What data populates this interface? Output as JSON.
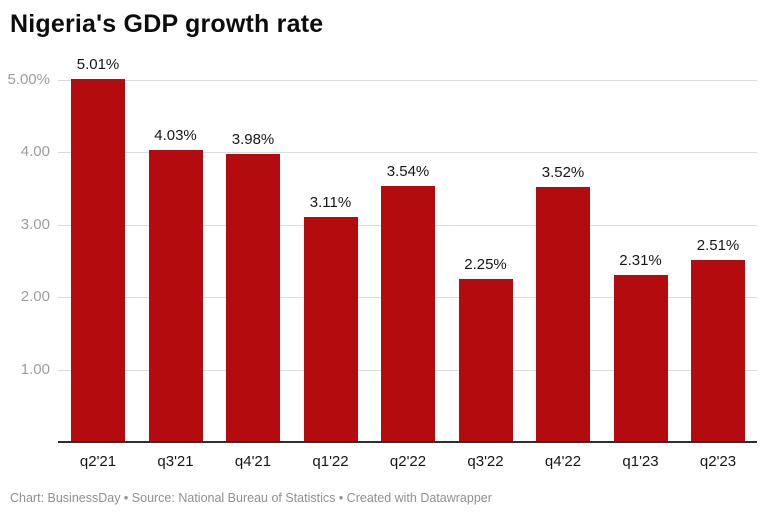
{
  "title": "Nigeria's GDP growth rate",
  "footer": "Chart: BusinessDay  • Source: National Bureau of Statistics • Created with Datawrapper",
  "colors": {
    "bar": "#b40c0e",
    "gridline": "#dbdbdb",
    "baseline": "#2e2e2e",
    "axis_text": "#9d9d9d",
    "label_text": "#161616",
    "title_text": "#0d0d0d",
    "footer_text": "#8f8f8f",
    "background": "#ffffff"
  },
  "chart_data": {
    "type": "bar",
    "title": "Nigeria's GDP growth rate",
    "xlabel": "",
    "ylabel": "",
    "categories": [
      "q2'21",
      "q3'21",
      "q4'21",
      "q1'22",
      "q2'22",
      "q3'22",
      "q4'22",
      "q1'23",
      "q2'23"
    ],
    "values": [
      5.01,
      4.03,
      3.98,
      3.11,
      3.54,
      2.25,
      3.52,
      2.31,
      2.51
    ],
    "value_labels": [
      "5.01%",
      "4.03%",
      "3.98%",
      "3.11%",
      "3.54%",
      "2.25%",
      "3.52%",
      "2.31%",
      "2.51%"
    ],
    "ylim": [
      0,
      5
    ],
    "y_ticks": [
      {
        "value": 5,
        "label": "5.00%"
      },
      {
        "value": 4,
        "label": "4.00"
      },
      {
        "value": 3,
        "label": "3.00"
      },
      {
        "value": 2,
        "label": "2.00"
      },
      {
        "value": 1,
        "label": "1.00"
      }
    ],
    "grid": true,
    "legend": "none"
  }
}
